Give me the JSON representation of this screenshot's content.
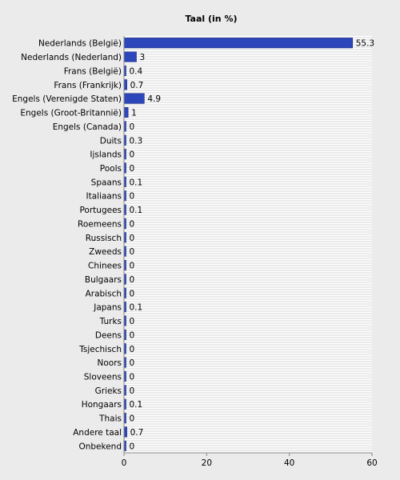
{
  "chart_data": {
    "type": "bar",
    "orientation": "horizontal",
    "title": "Taal (in %)",
    "xlabel": "",
    "ylabel": "",
    "xlim": [
      0,
      60
    ],
    "x_ticks": [
      0,
      20,
      40,
      60
    ],
    "grid": "horizontal stripes",
    "bar_color": "#2d46b9",
    "background": "#ebebeb",
    "categories": [
      "Nederlands (België)",
      "Nederlands (Nederland)",
      "Frans (België)",
      "Frans (Frankrijk)",
      "Engels (Verenigde Staten)",
      "Engels (Groot-Britannië)",
      "Engels (Canada)",
      "Duits",
      "Ijslands",
      "Pools",
      "Spaans",
      "Italiaans",
      "Portugees",
      "Roemeens",
      "Russisch",
      "Zweeds",
      "Chinees",
      "Bulgaars",
      "Arabisch",
      "Japans",
      "Turks",
      "Deens",
      "Tsjechisch",
      "Noors",
      "Sloveens",
      "Grieks",
      "Hongaars",
      "Thais",
      "Andere taal",
      "Onbekend"
    ],
    "values": [
      55.3,
      3,
      0.4,
      0.7,
      4.9,
      1,
      0,
      0.3,
      0,
      0,
      0.1,
      0,
      0.1,
      0,
      0,
      0,
      0,
      0,
      0,
      0.1,
      0,
      0,
      0,
      0,
      0,
      0,
      0.1,
      0,
      0.7,
      0
    ]
  }
}
